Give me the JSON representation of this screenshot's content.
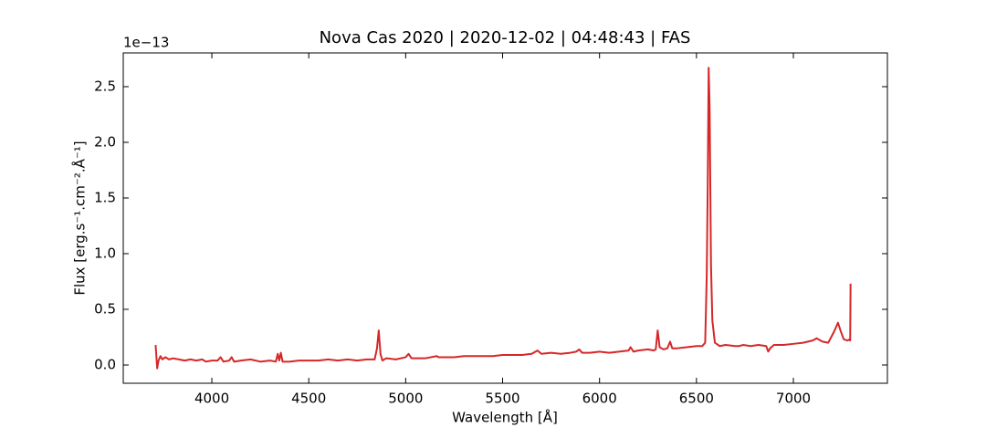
{
  "chart_data": {
    "type": "line",
    "title": "Nova Cas 2020 | 2020-12-02 | 04:48:43 | FAS",
    "x_label": "Wavelength [Å]",
    "y_label": "Flux [erg.s⁻¹.cm⁻².Å⁻¹]",
    "y_offset_label": "1e−13",
    "x": [
      3710,
      3718,
      3725,
      3735,
      3745,
      3760,
      3780,
      3800,
      3830,
      3860,
      3890,
      3920,
      3950,
      3970,
      4000,
      4030,
      4045,
      4060,
      4090,
      4102,
      4115,
      4150,
      4200,
      4250,
      4300,
      4330,
      4340,
      4348,
      4356,
      4365,
      4400,
      4450,
      4500,
      4550,
      4600,
      4650,
      4700,
      4750,
      4800,
      4840,
      4852,
      4861,
      4870,
      4880,
      4900,
      4950,
      5000,
      5015,
      5030,
      5100,
      5160,
      5170,
      5185,
      5250,
      5300,
      5350,
      5400,
      5450,
      5500,
      5550,
      5600,
      5650,
      5680,
      5700,
      5750,
      5800,
      5850,
      5880,
      5895,
      5910,
      5950,
      6000,
      6050,
      6100,
      6150,
      6160,
      6175,
      6200,
      6250,
      6280,
      6290,
      6300,
      6310,
      6330,
      6350,
      6364,
      6375,
      6400,
      6450,
      6500,
      6530,
      6545,
      6553,
      6558,
      6563,
      6568,
      6575,
      6582,
      6595,
      6620,
      6650,
      6700,
      6720,
      6740,
      6780,
      6820,
      6860,
      6870,
      6880,
      6900,
      6950,
      7000,
      7050,
      7100,
      7120,
      7150,
      7180,
      7210,
      7230,
      7245,
      7260,
      7280,
      7290,
      7293,
      7295
    ],
    "series": [
      {
        "color": "#d62728",
        "values": [
          0.18,
          -0.03,
          0.04,
          0.08,
          0.05,
          0.07,
          0.05,
          0.06,
          0.05,
          0.04,
          0.05,
          0.04,
          0.05,
          0.03,
          0.04,
          0.04,
          0.07,
          0.03,
          0.04,
          0.07,
          0.03,
          0.04,
          0.05,
          0.03,
          0.04,
          0.03,
          0.1,
          0.04,
          0.11,
          0.03,
          0.03,
          0.04,
          0.04,
          0.04,
          0.05,
          0.04,
          0.05,
          0.04,
          0.05,
          0.05,
          0.15,
          0.31,
          0.1,
          0.04,
          0.06,
          0.05,
          0.07,
          0.1,
          0.06,
          0.06,
          0.08,
          0.07,
          0.07,
          0.07,
          0.08,
          0.08,
          0.08,
          0.08,
          0.09,
          0.09,
          0.09,
          0.1,
          0.13,
          0.1,
          0.11,
          0.1,
          0.11,
          0.12,
          0.14,
          0.11,
          0.11,
          0.12,
          0.11,
          0.12,
          0.13,
          0.16,
          0.12,
          0.13,
          0.14,
          0.13,
          0.14,
          0.31,
          0.16,
          0.14,
          0.15,
          0.21,
          0.15,
          0.15,
          0.16,
          0.17,
          0.17,
          0.2,
          0.8,
          1.6,
          2.67,
          2.3,
          0.9,
          0.4,
          0.2,
          0.17,
          0.18,
          0.17,
          0.17,
          0.18,
          0.17,
          0.18,
          0.17,
          0.12,
          0.15,
          0.18,
          0.18,
          0.19,
          0.2,
          0.22,
          0.24,
          0.21,
          0.2,
          0.3,
          0.38,
          0.3,
          0.23,
          0.22,
          0.23,
          0.22,
          0.73
        ]
      }
    ],
    "xlim": [
      3543,
      7485
    ],
    "ylim": [
      -0.164,
      2.803
    ],
    "xticks": [
      4000,
      4500,
      5000,
      5500,
      6000,
      6500,
      7000
    ],
    "yticks": [
      {
        "value": 0,
        "label": "0.0"
      },
      0.5,
      {
        "value": 1,
        "label": "1.0"
      },
      1.5,
      {
        "value": 2,
        "label": "2.0"
      },
      2.5
    ],
    "grid": false
  }
}
